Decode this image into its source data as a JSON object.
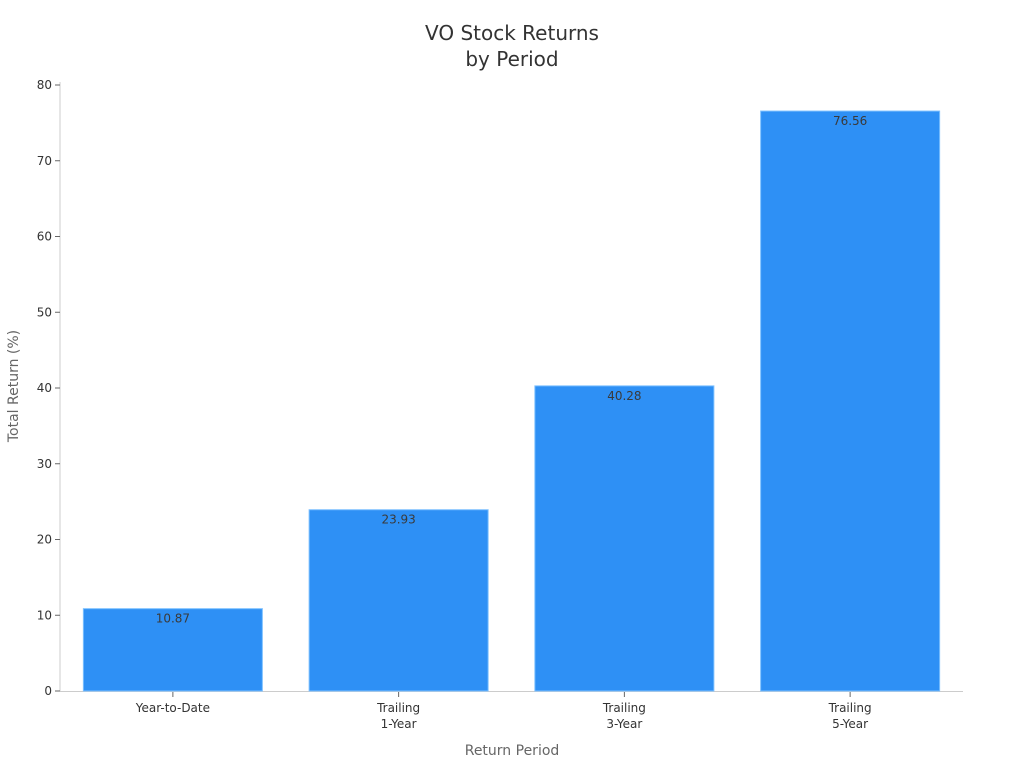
{
  "chart_data": {
    "type": "bar",
    "title": "VO Stock Returns by Period",
    "title_lines": [
      "VO Stock Returns",
      "by Period"
    ],
    "xlabel": "Return Period",
    "ylabel": "Total Return (%)",
    "categories": [
      "Year-to-Date",
      "Trailing 1-Year",
      "Trailing 3-Year",
      "Trailing 5-Year"
    ],
    "category_lines": [
      [
        "Year-to-Date"
      ],
      [
        "Trailing",
        "1-Year"
      ],
      [
        "Trailing",
        "3-Year"
      ],
      [
        "Trailing",
        "5-Year"
      ]
    ],
    "values": [
      10.87,
      23.93,
      40.28,
      76.56
    ],
    "data_labels": [
      "10.87",
      "23.93",
      "40.28",
      "76.56"
    ],
    "ylim": [
      0,
      80
    ],
    "yticks": [
      0,
      10,
      20,
      30,
      40,
      50,
      60,
      70,
      80
    ],
    "grid": false,
    "legend": null,
    "bar_color": "#2e90f5",
    "bar_edge_color": "#7cc0ff",
    "axis_color": "#cccccc"
  }
}
